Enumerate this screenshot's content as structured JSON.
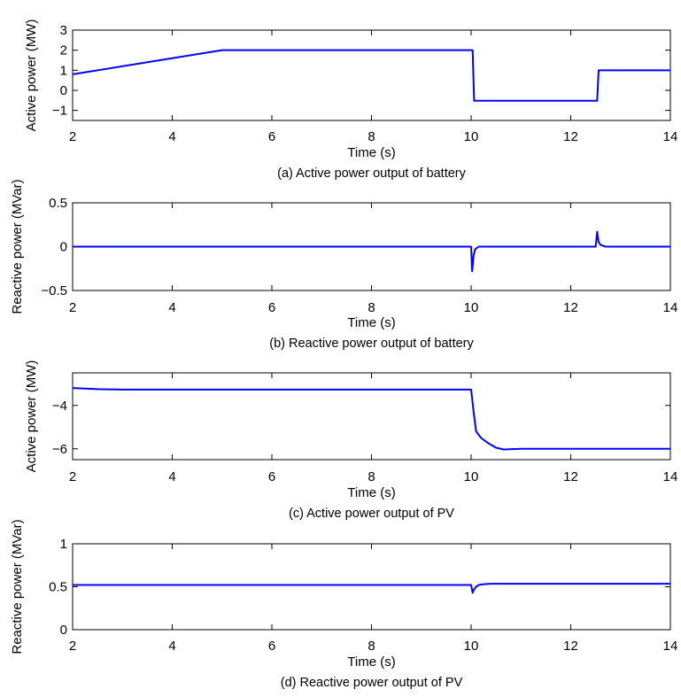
{
  "chart_data": [
    {
      "type": "line",
      "caption": "(a) Active power output of battery",
      "xlabel": "Time (s)",
      "ylabel": "Active power (MW)",
      "xlim": [
        2,
        14
      ],
      "ylim": [
        -1.5,
        3
      ],
      "xticks": [
        "2",
        "4",
        "6",
        "8",
        "10",
        "12",
        "14"
      ],
      "yticks": [
        "3",
        "2",
        "1",
        "0",
        "−1"
      ],
      "color": "#0000ff",
      "grid": false,
      "series": [
        {
          "x": [
            2,
            5,
            10,
            10.03,
            10.06,
            12.5,
            12.53,
            12.56,
            14
          ],
          "y": [
            0.8,
            2,
            2,
            2,
            -0.52,
            -0.52,
            -0.52,
            1.0,
            1.0
          ]
        }
      ]
    },
    {
      "type": "line",
      "caption": "(b) Reactive power output of battery",
      "xlabel": "Time (s)",
      "ylabel": "Reactive power (MVar)",
      "xlim": [
        2,
        14
      ],
      "ylim": [
        -0.5,
        0.5
      ],
      "xticks": [
        "2",
        "4",
        "6",
        "8",
        "10",
        "12",
        "14"
      ],
      "yticks": [
        "0.5",
        "0",
        "−0.5"
      ],
      "color": "#0000ff",
      "grid": false,
      "series": [
        {
          "x": [
            2,
            10,
            10.02,
            10.05,
            10.08,
            10.15,
            10.3,
            12.5,
            12.53,
            12.56,
            12.6,
            12.7,
            14
          ],
          "y": [
            0,
            0,
            -0.28,
            -0.1,
            -0.03,
            0,
            0,
            0,
            0.17,
            0.05,
            0.02,
            0,
            0
          ]
        }
      ]
    },
    {
      "type": "line",
      "caption": "(c) Active power output of PV",
      "xlabel": "Time (s)",
      "ylabel": "Active power (MW)",
      "xlim": [
        2,
        14
      ],
      "ylim": [
        -6.5,
        -2.5
      ],
      "xticks": [
        "2",
        "4",
        "6",
        "8",
        "10",
        "12",
        "14"
      ],
      "yticks": [
        "−4",
        "−6"
      ],
      "color": "#0000ff",
      "grid": false,
      "series": [
        {
          "x": [
            2,
            2.5,
            3,
            4,
            6,
            8,
            10,
            10.05,
            10.1,
            10.2,
            10.35,
            10.5,
            10.65,
            11,
            12,
            13,
            14
          ],
          "y": [
            -3.2,
            -3.25,
            -3.27,
            -3.27,
            -3.27,
            -3.27,
            -3.27,
            -4.3,
            -5.2,
            -5.5,
            -5.75,
            -5.95,
            -6.03,
            -6.0,
            -6.0,
            -6.0,
            -6.0
          ]
        }
      ]
    },
    {
      "type": "line",
      "caption": "(d) Reactive power output of PV",
      "xlabel": "Time (s)",
      "ylabel": "Reactive power (MVar)",
      "xlim": [
        2,
        14
      ],
      "ylim": [
        0,
        1
      ],
      "xticks": [
        "2",
        "4",
        "6",
        "8",
        "10",
        "12",
        "14"
      ],
      "yticks": [
        "1",
        "0.5",
        "0"
      ],
      "color": "#0000ff",
      "grid": false,
      "series": [
        {
          "x": [
            2,
            10,
            10.03,
            10.06,
            10.1,
            10.15,
            10.25,
            10.4,
            10.6,
            12,
            14
          ],
          "y": [
            0.52,
            0.52,
            0.43,
            0.47,
            0.5,
            0.52,
            0.53,
            0.535,
            0.535,
            0.535,
            0.535
          ]
        }
      ]
    }
  ]
}
